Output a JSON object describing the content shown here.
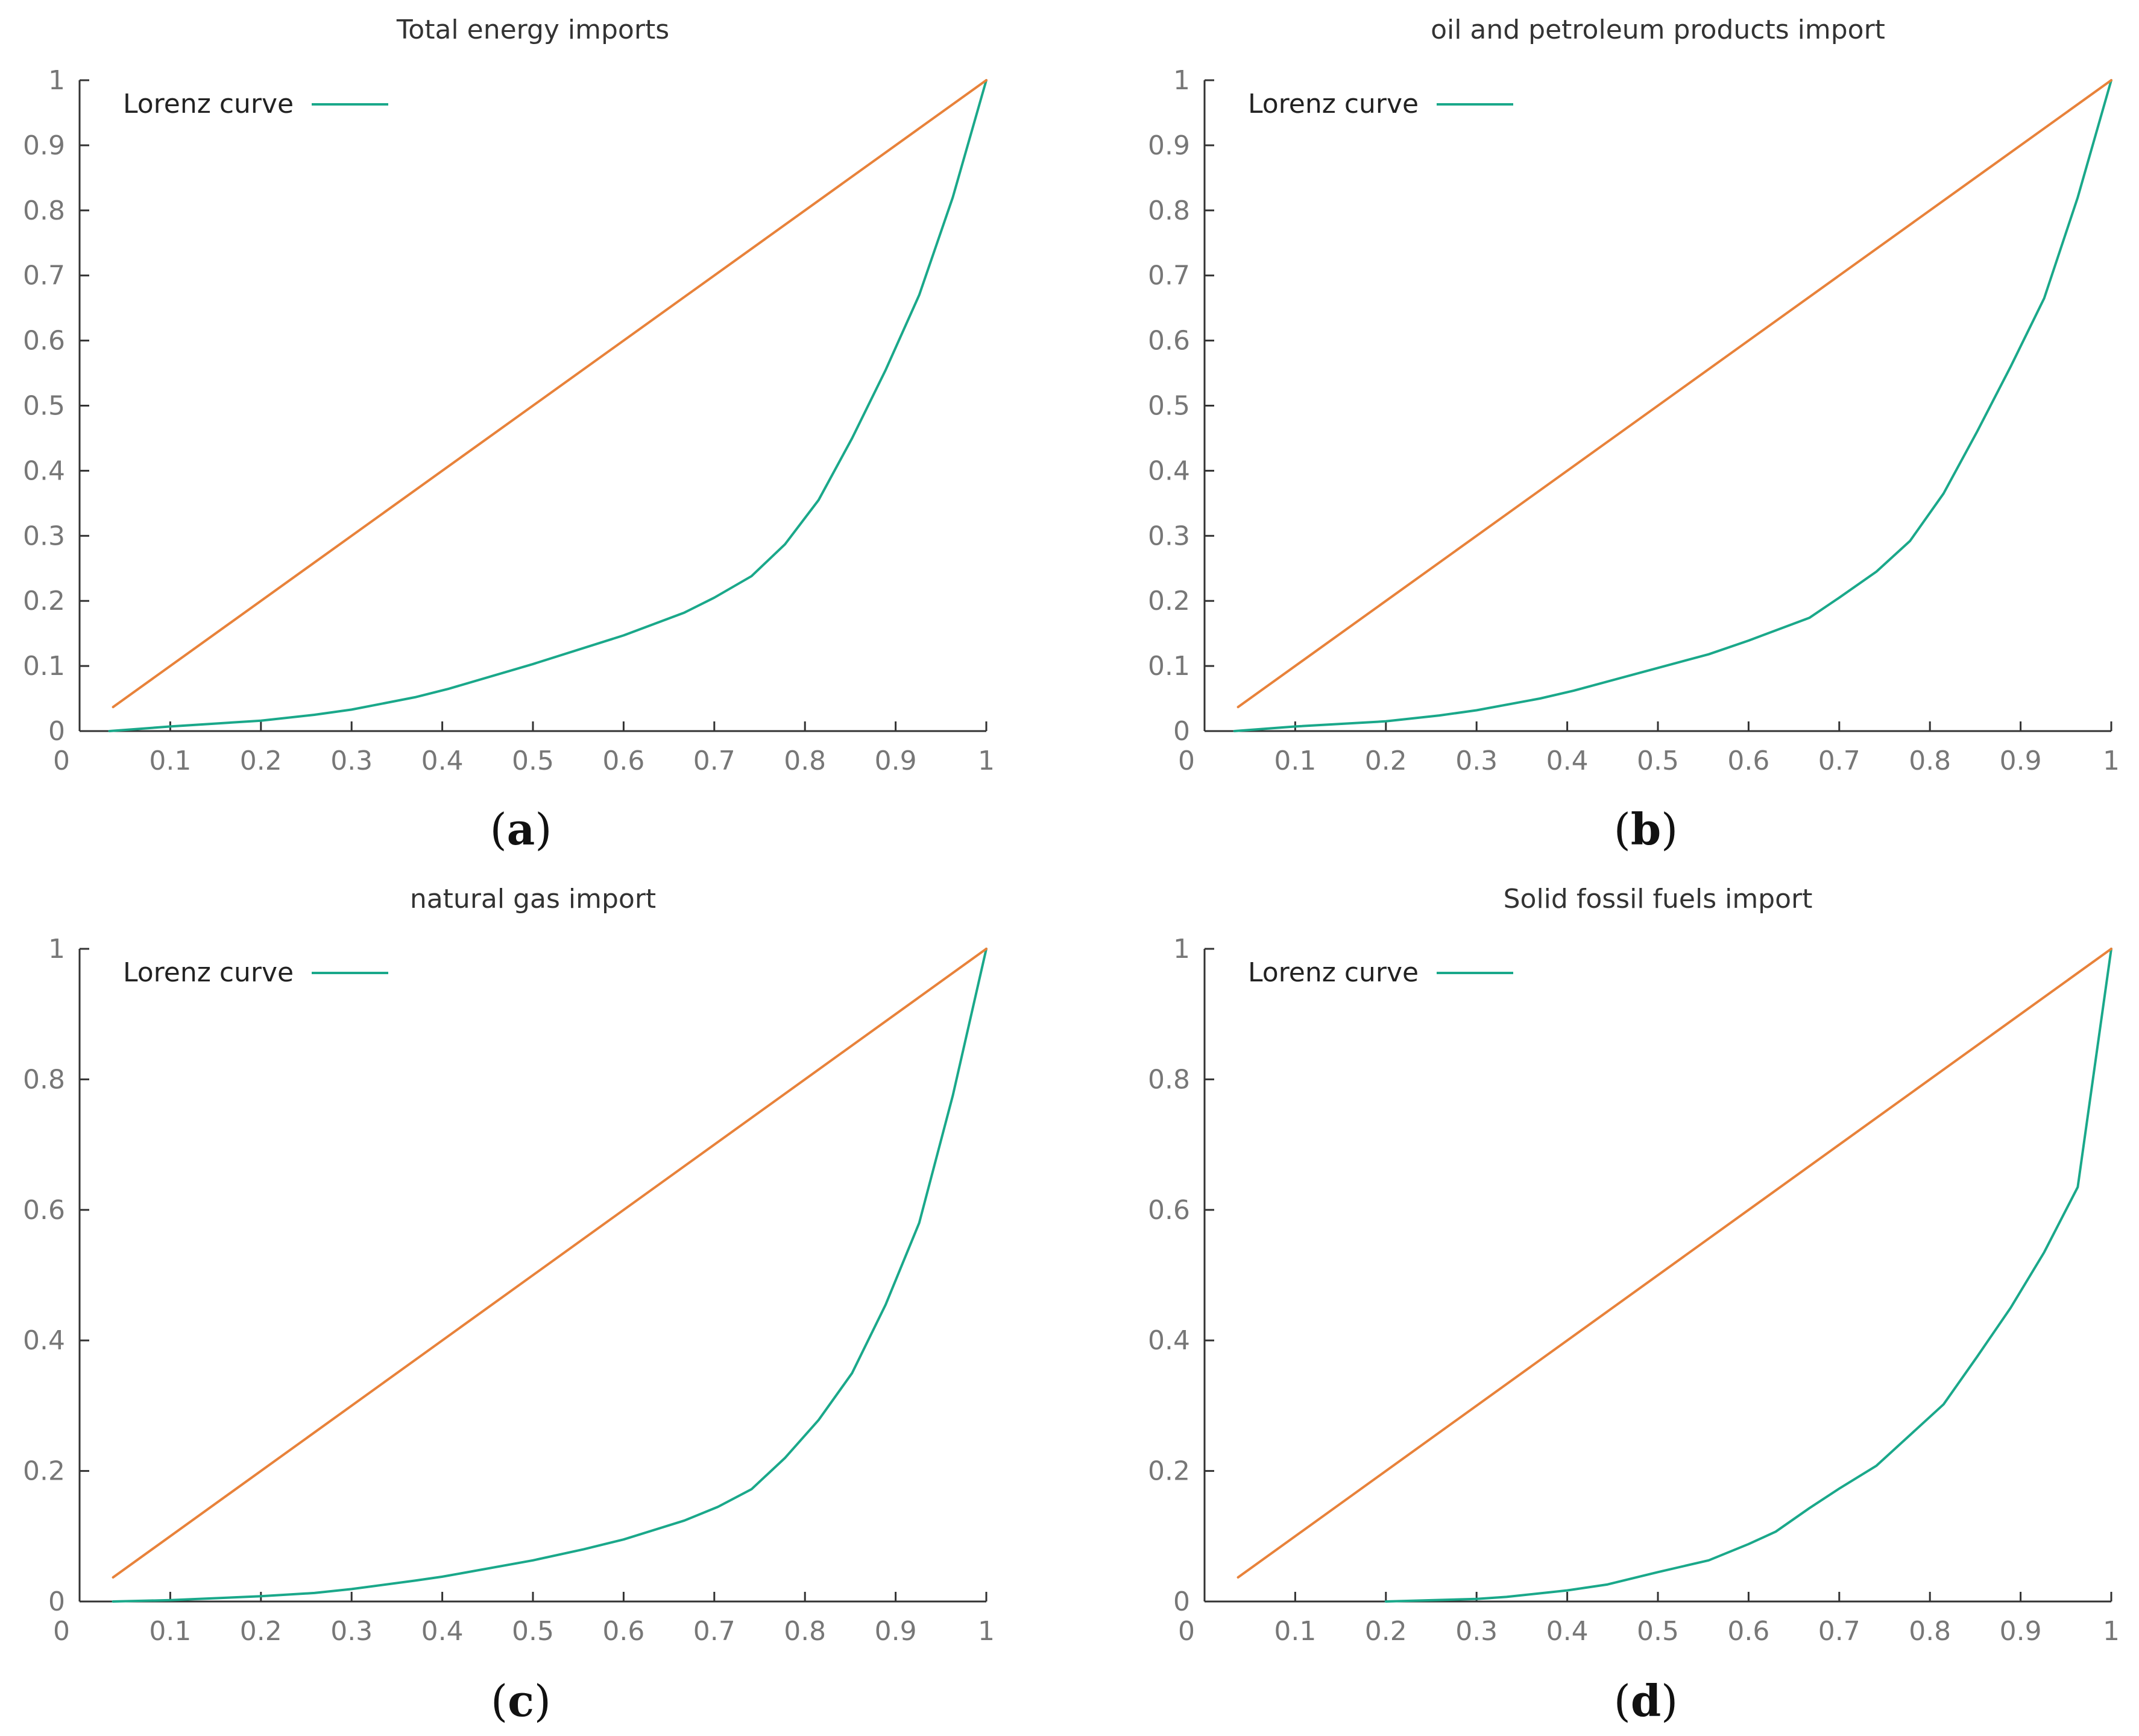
{
  "colors": {
    "lorenz": "#1aa88a",
    "equality": "#e8823a",
    "axis": "#333333",
    "tick_text": "#777777"
  },
  "chart_data": [
    {
      "type": "line",
      "panel": "a",
      "caption": {
        "open": "(",
        "letter": "a",
        "close": ")"
      },
      "title": "Total energy imports",
      "legend": {
        "label": "Lorenz curve",
        "position": "top-left"
      },
      "xlim": [
        0,
        1
      ],
      "ylim": [
        0,
        1
      ],
      "xticks": [
        0,
        0.1,
        0.2,
        0.3,
        0.4,
        0.5,
        0.6,
        0.7,
        0.8,
        0.9,
        1
      ],
      "xtick_labels": [
        "0",
        "0.1",
        "0.2",
        "0.3",
        "0.4",
        "0.5",
        "0.6",
        "0.7",
        "0.8",
        "0.9",
        "1"
      ],
      "yticks": [
        0,
        0.1,
        0.2,
        0.3,
        0.4,
        0.5,
        0.6,
        0.7,
        0.8,
        0.9,
        1
      ],
      "ytick_labels": [
        "0",
        "0.1",
        "0.2",
        "0.3",
        "0.4",
        "0.5",
        "0.6",
        "0.7",
        "0.8",
        "0.9",
        "1"
      ],
      "series": [
        {
          "name": "Lorenz curve",
          "color": "#1aa88a",
          "x": [
            0.033,
            0.1,
            0.2,
            0.259,
            0.3,
            0.37,
            0.407,
            0.5,
            0.6,
            0.667,
            0.7,
            0.741,
            0.778,
            0.815,
            0.852,
            0.889,
            0.926,
            0.963,
            1.0
          ],
          "y": [
            0.0,
            0.007,
            0.016,
            0.025,
            0.033,
            0.052,
            0.065,
            0.103,
            0.147,
            0.182,
            0.205,
            0.238,
            0.287,
            0.355,
            0.45,
            0.555,
            0.67,
            0.82,
            1.0
          ]
        },
        {
          "name": "Equality line",
          "color": "#e8823a",
          "x": [
            0.037,
            1.0
          ],
          "y": [
            0.037,
            1.0
          ]
        }
      ]
    },
    {
      "type": "line",
      "panel": "b",
      "caption": {
        "open": "(",
        "letter": "b",
        "close": ")"
      },
      "title": "oil and petroleum products import",
      "legend": {
        "label": "Lorenz curve",
        "position": "top-left"
      },
      "xlim": [
        0,
        1
      ],
      "ylim": [
        0,
        1
      ],
      "xticks": [
        0,
        0.1,
        0.2,
        0.3,
        0.4,
        0.5,
        0.6,
        0.7,
        0.8,
        0.9,
        1
      ],
      "xtick_labels": [
        "0",
        "0.1",
        "0.2",
        "0.3",
        "0.4",
        "0.5",
        "0.6",
        "0.7",
        "0.8",
        "0.9",
        "1"
      ],
      "yticks": [
        0,
        0.1,
        0.2,
        0.3,
        0.4,
        0.5,
        0.6,
        0.7,
        0.8,
        0.9,
        1
      ],
      "ytick_labels": [
        "0",
        "0.1",
        "0.2",
        "0.3",
        "0.4",
        "0.5",
        "0.6",
        "0.7",
        "0.8",
        "0.9",
        "1"
      ],
      "series": [
        {
          "name": "Lorenz curve",
          "color": "#1aa88a",
          "x": [
            0.033,
            0.1,
            0.2,
            0.259,
            0.3,
            0.37,
            0.407,
            0.5,
            0.556,
            0.6,
            0.667,
            0.7,
            0.741,
            0.778,
            0.815,
            0.852,
            0.889,
            0.926,
            0.963,
            1.0
          ],
          "y": [
            0.0,
            0.007,
            0.015,
            0.024,
            0.032,
            0.05,
            0.062,
            0.097,
            0.118,
            0.139,
            0.174,
            0.205,
            0.245,
            0.292,
            0.365,
            0.46,
            0.56,
            0.665,
            0.82,
            1.0
          ]
        },
        {
          "name": "Equality line",
          "color": "#e8823a",
          "x": [
            0.037,
            1.0
          ],
          "y": [
            0.037,
            1.0
          ]
        }
      ]
    },
    {
      "type": "line",
      "panel": "c",
      "caption": {
        "open": "(",
        "letter": "c",
        "close": ")"
      },
      "title": "natural gas import",
      "legend": {
        "label": "Lorenz curve",
        "position": "top-left"
      },
      "xlim": [
        0,
        1
      ],
      "ylim": [
        0,
        1
      ],
      "xticks": [
        0,
        0.1,
        0.2,
        0.3,
        0.4,
        0.5,
        0.6,
        0.7,
        0.8,
        0.9,
        1
      ],
      "xtick_labels": [
        "0",
        "0.1",
        "0.2",
        "0.3",
        "0.4",
        "0.5",
        "0.6",
        "0.7",
        "0.8",
        "0.9",
        "1"
      ],
      "yticks": [
        0,
        0.2,
        0.4,
        0.6,
        0.8,
        1
      ],
      "ytick_labels": [
        "0",
        "0.2",
        "0.4",
        "0.6",
        "0.8",
        "1"
      ],
      "series": [
        {
          "name": "Lorenz curve",
          "color": "#1aa88a",
          "x": [
            0.037,
            0.1,
            0.2,
            0.259,
            0.3,
            0.37,
            0.4,
            0.5,
            0.556,
            0.6,
            0.667,
            0.704,
            0.741,
            0.778,
            0.815,
            0.852,
            0.889,
            0.926,
            0.963,
            1.0
          ],
          "y": [
            0.0,
            0.002,
            0.008,
            0.013,
            0.019,
            0.032,
            0.038,
            0.063,
            0.08,
            0.095,
            0.124,
            0.145,
            0.172,
            0.22,
            0.278,
            0.35,
            0.455,
            0.58,
            0.775,
            1.0
          ]
        },
        {
          "name": "Equality line",
          "color": "#e8823a",
          "x": [
            0.037,
            1.0
          ],
          "y": [
            0.037,
            1.0
          ]
        }
      ]
    },
    {
      "type": "line",
      "panel": "d",
      "caption": {
        "open": "(",
        "letter": "d",
        "close": ")"
      },
      "title": "Solid fossil fuels import",
      "legend": {
        "label": "Lorenz curve",
        "position": "top-left"
      },
      "xlim": [
        0,
        1
      ],
      "ylim": [
        0,
        1
      ],
      "xticks": [
        0,
        0.1,
        0.2,
        0.3,
        0.4,
        0.5,
        0.6,
        0.7,
        0.8,
        0.9,
        1
      ],
      "xtick_labels": [
        "0",
        "0.1",
        "0.2",
        "0.3",
        "0.4",
        "0.5",
        "0.6",
        "0.7",
        "0.8",
        "0.9",
        "1"
      ],
      "yticks": [
        0,
        0.2,
        0.4,
        0.6,
        0.8,
        1
      ],
      "ytick_labels": [
        "0",
        "0.2",
        "0.4",
        "0.6",
        "0.8",
        "1"
      ],
      "series": [
        {
          "name": "Lorenz curve",
          "color": "#1aa88a",
          "x": [
            0.2,
            0.3,
            0.333,
            0.4,
            0.444,
            0.5,
            0.556,
            0.6,
            0.63,
            0.667,
            0.7,
            0.741,
            0.778,
            0.815,
            0.852,
            0.889,
            0.926,
            0.963,
            1.0
          ],
          "y": [
            0.0,
            0.004,
            0.007,
            0.017,
            0.026,
            0.045,
            0.063,
            0.088,
            0.107,
            0.143,
            0.173,
            0.208,
            0.255,
            0.302,
            0.375,
            0.45,
            0.535,
            0.635,
            1.0
          ]
        },
        {
          "name": "Equality line",
          "color": "#e8823a",
          "x": [
            0.037,
            1.0
          ],
          "y": [
            0.037,
            1.0
          ]
        }
      ]
    }
  ]
}
